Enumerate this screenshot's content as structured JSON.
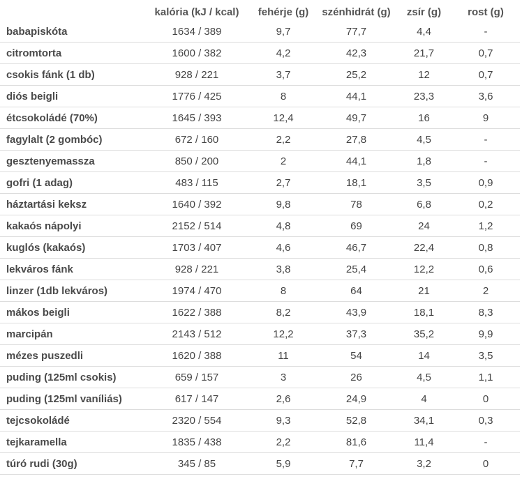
{
  "table": {
    "headers": [
      "",
      "kalória (kJ / kcal)",
      "fehérje (g)",
      "szénhidrát (g)",
      "zsír (g)",
      "rost (g)"
    ],
    "rows": [
      [
        "babapiskóta",
        "1634 / 389",
        "9,7",
        "77,7",
        "4,4",
        "-"
      ],
      [
        "citromtorta",
        "1600 / 382",
        "4,2",
        "42,3",
        "21,7",
        "0,7"
      ],
      [
        "csokis fánk (1 db)",
        "928 / 221",
        "3,7",
        "25,2",
        "12",
        "0,7"
      ],
      [
        "diós beigli",
        "1776 / 425",
        "8",
        "44,1",
        "23,3",
        "3,6"
      ],
      [
        "étcsokoládé (70%)",
        "1645 / 393",
        "12,4",
        "49,7",
        "16",
        "9"
      ],
      [
        "fagylalt (2 gombóc)",
        "672 / 160",
        "2,2",
        "27,8",
        "4,5",
        "-"
      ],
      [
        "gesztenyemassza",
        "850 / 200",
        "2",
        "44,1",
        "1,8",
        "-"
      ],
      [
        "gofri (1 adag)",
        "483 / 115",
        "2,7",
        "18,1",
        "3,5",
        "0,9"
      ],
      [
        "háztartási keksz",
        "1640 / 392",
        "9,8",
        "78",
        "6,8",
        "0,2"
      ],
      [
        "kakaós nápolyi",
        "2152 / 514",
        "4,8",
        "69",
        "24",
        "1,2"
      ],
      [
        "kuglós (kakaós)",
        "1703 / 407",
        "4,6",
        "46,7",
        "22,4",
        "0,8"
      ],
      [
        "lekváros fánk",
        "928 / 221",
        "3,8",
        "25,4",
        "12,2",
        "0,6"
      ],
      [
        "linzer (1db lekváros)",
        "1974 / 470",
        "8",
        "64",
        "21",
        "2"
      ],
      [
        "mákos beigli",
        "1622 / 388",
        "8,2",
        "43,9",
        "18,1",
        "8,3"
      ],
      [
        "marcipán",
        "2143 / 512",
        "12,2",
        "37,3",
        "35,2",
        "9,9"
      ],
      [
        "mézes puszedli",
        "1620 / 388",
        "11",
        "54",
        "14",
        "3,5"
      ],
      [
        "puding (125ml csokis)",
        "659 / 157",
        "3",
        "26",
        "4,5",
        "1,1"
      ],
      [
        "puding (125ml vaníliás)",
        "617 / 147",
        "2,6",
        "24,9",
        "4",
        "0"
      ],
      [
        "tejcsokoládé",
        "2320 / 554",
        "9,3",
        "52,8",
        "34,1",
        "0,3"
      ],
      [
        "tejkaramella",
        "1835 / 438",
        "2,2",
        "81,6",
        "11,4",
        "-"
      ],
      [
        "túró rudi (30g)",
        "345 / 85",
        "5,9",
        "7,7",
        "3,2",
        "0"
      ]
    ]
  }
}
